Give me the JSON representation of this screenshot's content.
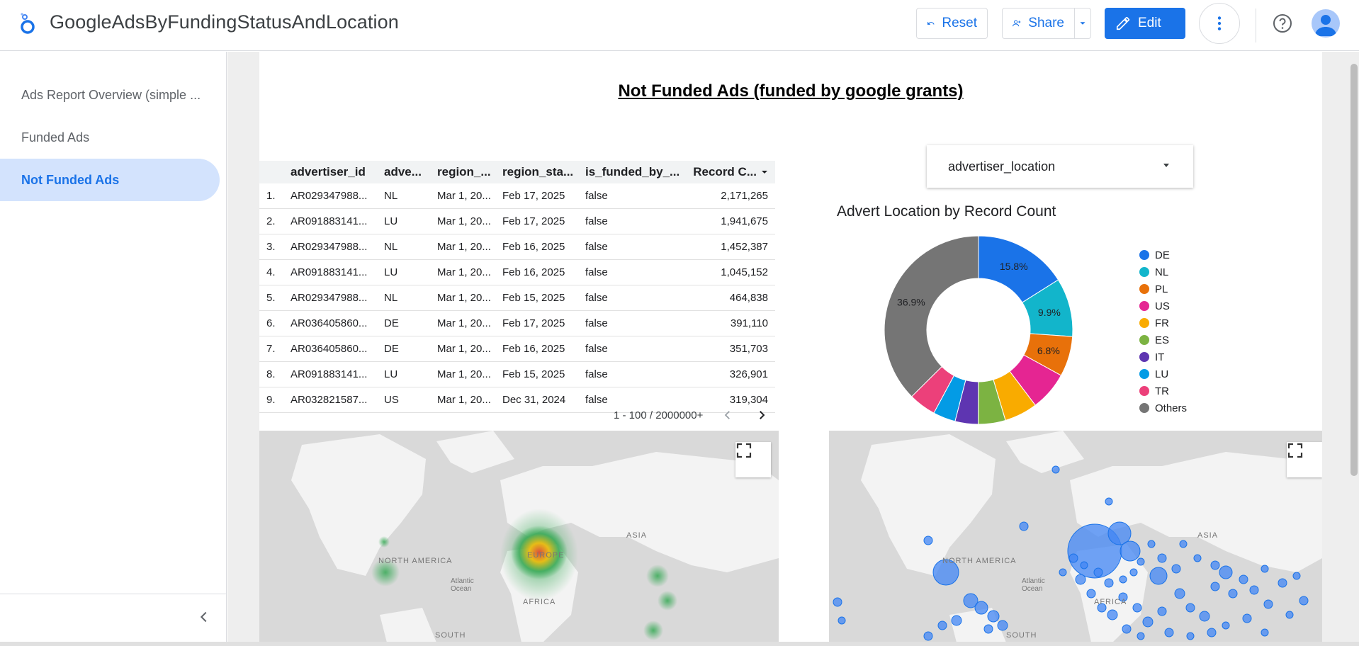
{
  "header": {
    "title": "GoogleAdsByFundingStatusAndLocation",
    "reset_label": "Reset",
    "share_label": "Share",
    "edit_label": "Edit"
  },
  "sidebar": {
    "items": [
      {
        "label": "Ads Report Overview (simple ..."
      },
      {
        "label": "Funded Ads"
      },
      {
        "label": "Not Funded Ads"
      }
    ]
  },
  "report": {
    "title": "Not Funded Ads (funded by google grants)"
  },
  "table": {
    "columns": [
      "advertiser_id",
      "adve...",
      "region_...",
      "region_sta...",
      "is_funded_by_...",
      "Record C..."
    ],
    "rows": [
      {
        "idx": "1.",
        "adv": "AR029347988...",
        "loc": "NL",
        "rs": "Mar 1, 20...",
        "re": "Feb 17, 2025",
        "fund": "false",
        "cnt": "2,171,265"
      },
      {
        "idx": "2.",
        "adv": "AR091883141...",
        "loc": "LU",
        "rs": "Mar 1, 20...",
        "re": "Feb 17, 2025",
        "fund": "false",
        "cnt": "1,941,675"
      },
      {
        "idx": "3.",
        "adv": "AR029347988...",
        "loc": "NL",
        "rs": "Mar 1, 20...",
        "re": "Feb 16, 2025",
        "fund": "false",
        "cnt": "1,452,387"
      },
      {
        "idx": "4.",
        "adv": "AR091883141...",
        "loc": "LU",
        "rs": "Mar 1, 20...",
        "re": "Feb 16, 2025",
        "fund": "false",
        "cnt": "1,045,152"
      },
      {
        "idx": "5.",
        "adv": "AR029347988...",
        "loc": "NL",
        "rs": "Mar 1, 20...",
        "re": "Feb 15, 2025",
        "fund": "false",
        "cnt": "464,838"
      },
      {
        "idx": "6.",
        "adv": "AR036405860...",
        "loc": "DE",
        "rs": "Mar 1, 20...",
        "re": "Feb 17, 2025",
        "fund": "false",
        "cnt": "391,110"
      },
      {
        "idx": "7.",
        "adv": "AR036405860...",
        "loc": "DE",
        "rs": "Mar 1, 20...",
        "re": "Feb 16, 2025",
        "fund": "false",
        "cnt": "351,703"
      },
      {
        "idx": "8.",
        "adv": "AR091883141...",
        "loc": "LU",
        "rs": "Mar 1, 20...",
        "re": "Feb 15, 2025",
        "fund": "false",
        "cnt": "326,901"
      },
      {
        "idx": "9.",
        "adv": "AR032821587...",
        "loc": "US",
        "rs": "Mar 1, 20...",
        "re": "Dec 31, 2024",
        "fund": "false",
        "cnt": "319,304"
      }
    ],
    "pagination": "1 - 100 / 2000000+"
  },
  "filter": {
    "label": "advertiser_location"
  },
  "donut": {
    "title": "Advert Location by Record Count",
    "colors": {
      "DE": "#1a73e8",
      "NL": "#12b5cb",
      "PL": "#e8710a",
      "US": "#e52592",
      "FR": "#f9ab00",
      "ES": "#7cb342",
      "IT": "#5e35b1",
      "LU": "#039be5",
      "TR": "#ec407a",
      "Others": "#757575"
    }
  },
  "chart_data": {
    "type": "pie",
    "title": "Advert Location by Record Count",
    "categories": [
      "DE",
      "NL",
      "PL",
      "US",
      "FR",
      "ES",
      "IT",
      "LU",
      "TR",
      "Others"
    ],
    "values": [
      15.8,
      9.9,
      6.8,
      6.6,
      5.6,
      4.6,
      3.9,
      3.8,
      4.6,
      36.9
    ],
    "labels": [
      "15.8%",
      "9.9%",
      "6.8%",
      "",
      "",
      "",
      "",
      "",
      "",
      "36.9%"
    ],
    "legend": "right"
  },
  "maps": {
    "labels": {
      "north_america": "NORTH AMERICA",
      "europe": "EUROPE",
      "asia": "ASIA",
      "africa": "AFRICA",
      "south": "SOUTH",
      "atlantic": "Atlantic Ocean"
    }
  }
}
